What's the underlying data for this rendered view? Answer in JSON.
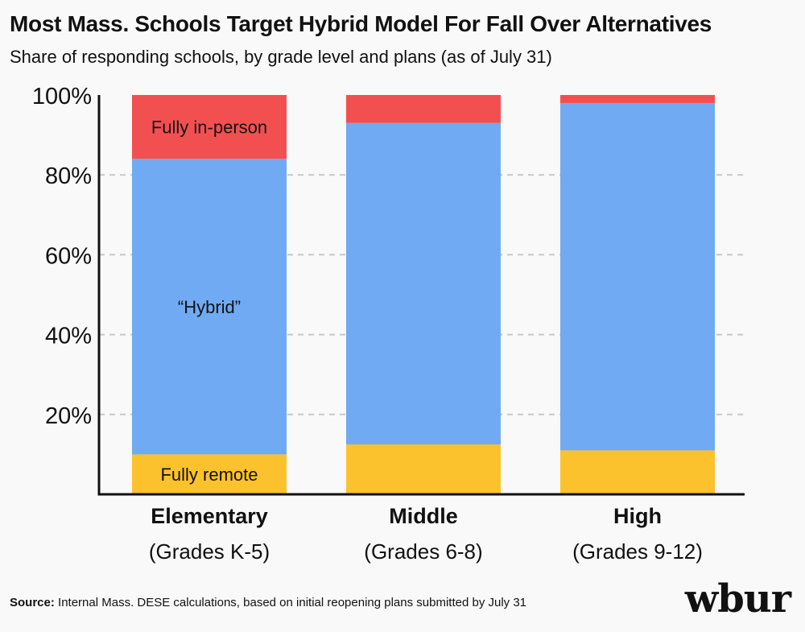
{
  "title": "Most Mass. Schools Target Hybrid Model For Fall Over Alternatives",
  "subtitle": "Share of responding schools, by grade level and plans (as of July 31)",
  "source_label": "Source:",
  "source_text": "Internal Mass. DESE calculations, based on initial reopening plans submitted by July 31",
  "logo_text": "wbur",
  "colors": {
    "fully_remote": "#fcc22d",
    "hybrid": "#70aaf3",
    "fully_in_person": "#f25050",
    "grid": "#c8c8c8",
    "axis": "#111111"
  },
  "chart_data": {
    "type": "bar",
    "stacked": true,
    "categories": [
      {
        "name": "Elementary",
        "sub": "(Grades K-5)"
      },
      {
        "name": "Middle",
        "sub": "(Grades 6-8)"
      },
      {
        "name": "High",
        "sub": "(Grades 9-12)"
      }
    ],
    "series": [
      {
        "name": "Fully remote",
        "key": "fully_remote",
        "values": [
          10,
          12.5,
          11
        ]
      },
      {
        "name": "“Hybrid”",
        "key": "hybrid",
        "values": [
          74,
          80.5,
          87
        ]
      },
      {
        "name": "Fully in-person",
        "key": "fully_in_person",
        "values": [
          16,
          7,
          2
        ]
      }
    ],
    "series_labels_on_category": 0,
    "y_ticks": [
      "20%",
      "40%",
      "60%",
      "80%",
      "100%"
    ],
    "y_tick_values": [
      20,
      40,
      60,
      80,
      100
    ],
    "ylim": [
      0,
      100
    ],
    "grid": true
  }
}
